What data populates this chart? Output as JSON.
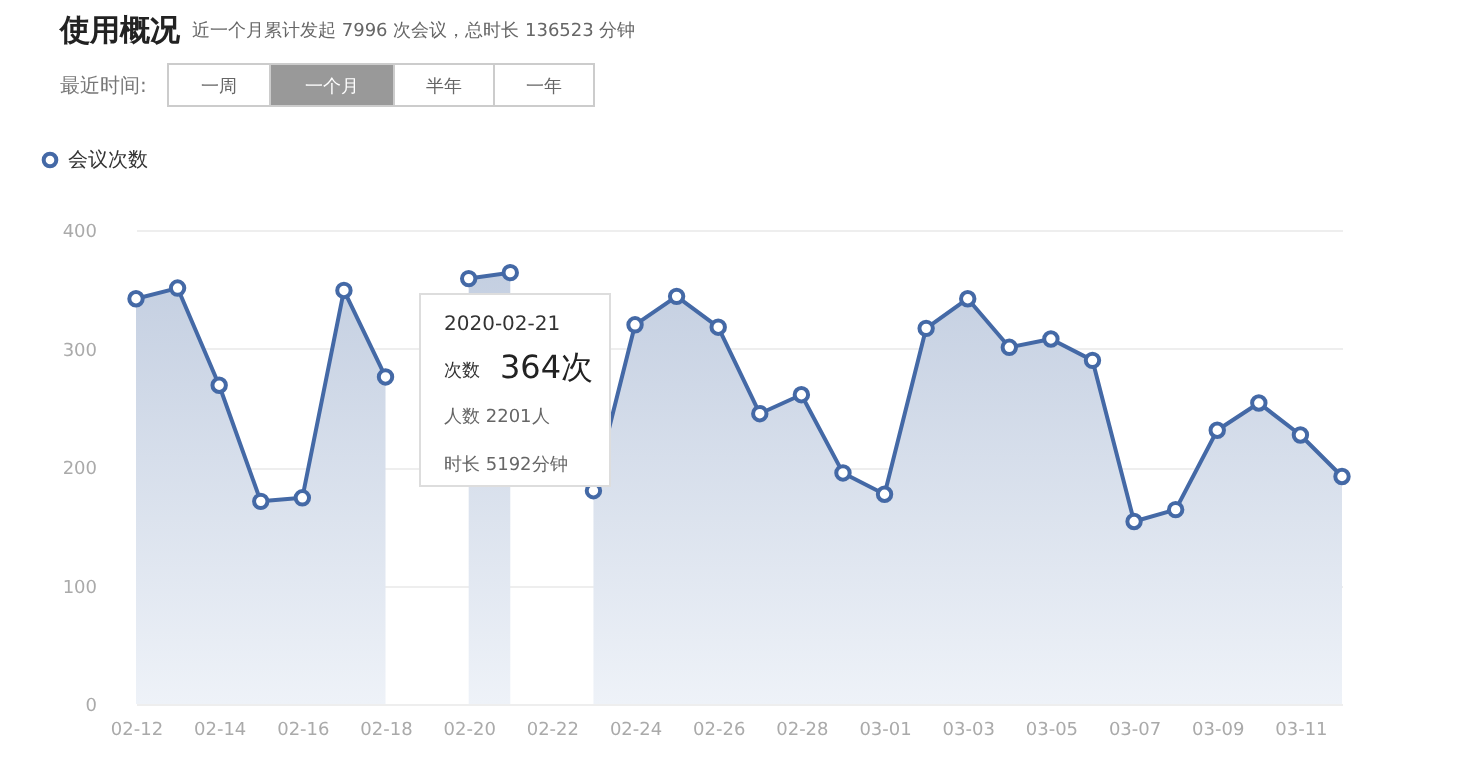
{
  "chart_data": {
    "type": "area",
    "title": "使用概况",
    "subtitle": "近一个月累计发起 7996 次会议，总时长 136523 分钟",
    "categories": [
      "02-12",
      null,
      "02-14",
      null,
      "02-16",
      null,
      "02-18",
      null,
      "02-20",
      null,
      "02-22",
      null,
      "02-24",
      null,
      "02-26",
      null,
      "02-28",
      null,
      "03-01",
      null,
      "03-03",
      null,
      "03-05",
      null,
      "03-07",
      null,
      "03-09",
      null,
      "03-11",
      null
    ],
    "series": [
      {
        "name": "会议次数",
        "color": "#4469a6",
        "values": [
          342,
          351,
          269,
          171,
          174,
          349,
          276,
          null,
          359,
          364,
          null,
          180,
          320,
          344,
          318,
          245,
          261,
          195,
          177,
          317,
          342,
          301,
          308,
          290,
          154,
          164,
          231,
          254,
          227,
          192
        ]
      }
    ],
    "ylim": [
      0,
      400
    ],
    "yticks": [
      0,
      100,
      200,
      300,
      400
    ],
    "grid": "y",
    "legend": "top left",
    "marker": "circle",
    "annotations": [
      "最近时间:",
      "一周",
      "一个月",
      "半年",
      "一年",
      "2020-02-21",
      "次数",
      "364次",
      "人数  2201人",
      "时长  5192分钟"
    ]
  }
}
